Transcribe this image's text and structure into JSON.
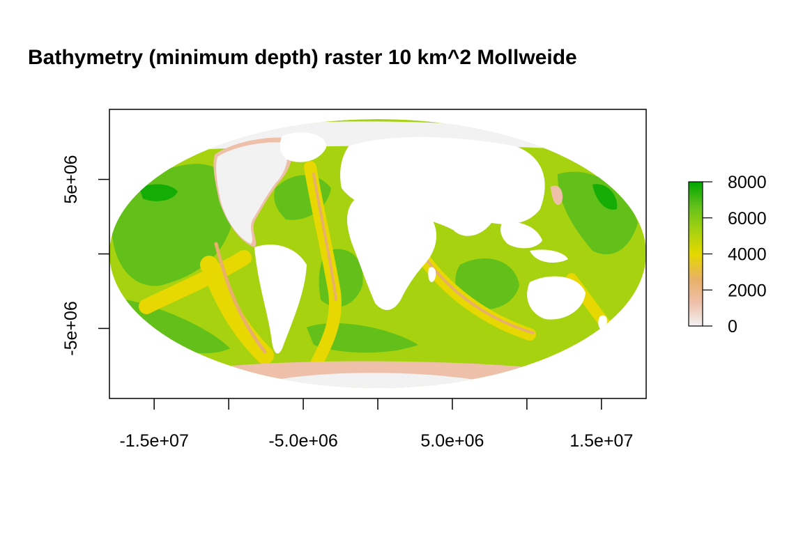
{
  "title": "Bathymetry (minimum depth) raster 10 km^2 Mollweide",
  "colors": {
    "palette": [
      "#f2f2f2",
      "#eec0aa",
      "#e8b06a",
      "#e6d800",
      "#a6d210",
      "#63c01a",
      "#00a600"
    ],
    "land": "#ffffff",
    "axis": "#000000"
  },
  "map": {
    "projection": "Mollweide",
    "xlim": [
      -18000000,
      18000000
    ],
    "ylim": [
      -9700000,
      9700000
    ]
  },
  "x_axis": {
    "ticks": [
      -15000000,
      -10000000,
      -5000000,
      0,
      5000000,
      10000000,
      15000000
    ],
    "labels": [
      {
        "value": -15000000,
        "text": "-1.5e+07"
      },
      {
        "value": -5000000,
        "text": "-5.0e+06"
      },
      {
        "value": 5000000,
        "text": "5.0e+06"
      },
      {
        "value": 15000000,
        "text": "1.5e+07"
      }
    ]
  },
  "y_axis": {
    "ticks": [
      5000000,
      0,
      -5000000
    ],
    "labels": [
      {
        "value": 5000000,
        "text": "5e+06"
      },
      {
        "value": -5000000,
        "text": "-5e+06"
      }
    ]
  },
  "legend": {
    "min": 0,
    "max": 8000,
    "ticks": [
      {
        "value": 8000,
        "text": "8000"
      },
      {
        "value": 6000,
        "text": "6000"
      },
      {
        "value": 4000,
        "text": "4000"
      },
      {
        "value": 2000,
        "text": "2000"
      },
      {
        "value": 0,
        "text": "0"
      }
    ]
  }
}
